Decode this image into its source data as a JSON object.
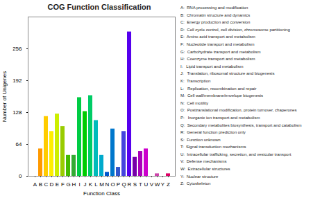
{
  "chart_data": {
    "type": "bar",
    "title": "COG Function Classification",
    "xlabel": "Function Class",
    "ylabel": "Number of Unigenes",
    "categories": [
      "A",
      "B",
      "C",
      "D",
      "E",
      "F",
      "G",
      "H",
      "I",
      "J",
      "K",
      "L",
      "M",
      "N",
      "O",
      "P",
      "Q",
      "R",
      "S",
      "T",
      "U",
      "V",
      "W",
      "Y",
      "Z"
    ],
    "values": [
      0,
      55,
      120,
      90,
      125,
      100,
      42,
      42,
      158,
      130,
      162,
      112,
      42,
      8,
      95,
      18,
      90,
      290,
      38,
      50,
      55,
      0,
      5,
      0,
      5
    ],
    "colors": [
      "#FF6600",
      "#FF9900",
      "#FFCC00",
      "#FFEE00",
      "#CCEE00",
      "#99CC00",
      "#44BB00",
      "#33AA33",
      "#00CC44",
      "#00CC00",
      "#00CC66",
      "#00BBBB",
      "#00AACC",
      "#0055CC",
      "#0077CC",
      "#3355CC",
      "#4444DD",
      "#5500EE",
      "#7700AA",
      "#AA00BB",
      "#CC00CC",
      "#EE44EE",
      "#CC44AA",
      "#EE44BB",
      "#DD0066"
    ],
    "ylim": [
      0,
      320
    ],
    "yticks": [
      0,
      64,
      128,
      192,
      256
    ],
    "grid": false,
    "annotations": [
      "A:  RNA processing and modification",
      "B:  Chromatin structure and dynamics",
      "C:  Energy production and conversion",
      "D:  Cell cycle control, cell division, chromosome partitioning",
      "E:  Amino acid transport and metabolism",
      "F:  Nucleotide transport and metabolism",
      "G:  Carbohydrate transport and metabolism",
      "H:  Coenzyme transport and metabolism",
      "I:   Lipid transport and metabolism",
      "J:   Translation, ribosomal structure and biogenesis",
      "K:  Transcription",
      "L:   Replication, recombination and repair",
      "M:  Cell wall/membrane/envelope biogenesis",
      "N:  Cell motility",
      "O:  Posttranslational modification, protein turnover, chaperones",
      "P:   Inorganic ion transport and metabolism",
      "Q:  Secondary metabolites biosynthesis, transport and catabolism",
      "R:  General function prediction only",
      "S:  Function unknown",
      "T:  Signal transduction mechanisms",
      "U:  Intracellular trafficking, secretion, and vesicular transport",
      "V:  Defense mechanisms",
      "W:  Extracellular structures",
      "Y:  Nuclear structure",
      "Z:  Cytoskeleton"
    ]
  }
}
